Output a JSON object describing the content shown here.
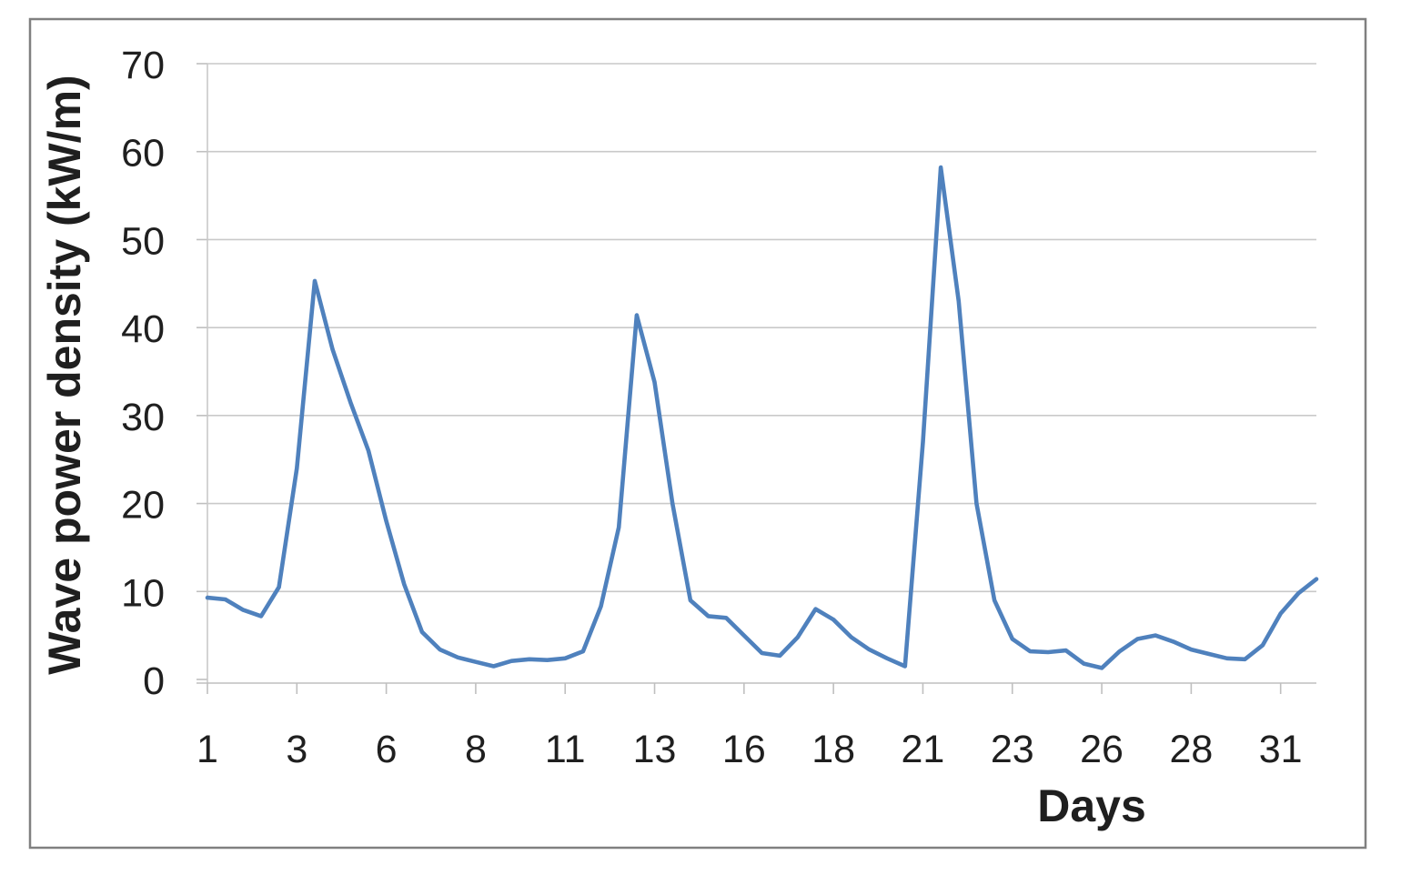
{
  "chart_data": {
    "type": "line",
    "title": "",
    "xlabel": "Days",
    "ylabel": "Wave power density (kW/m)",
    "x_axis": {
      "tick_labels": [
        "1",
        "3",
        "6",
        "8",
        "11",
        "13",
        "16",
        "18",
        "21",
        "23",
        "26",
        "28",
        "31"
      ],
      "tick_point_indices": [
        0,
        5,
        10,
        15,
        20,
        25,
        30,
        35,
        40,
        45,
        50,
        55,
        60
      ]
    },
    "y_axis": {
      "ticks": [
        0,
        10,
        20,
        30,
        40,
        50,
        60,
        70
      ],
      "ylim": [
        0,
        70
      ]
    },
    "grid": "horizontal",
    "legend": "none",
    "x_days": [
      1,
      1.5,
      2,
      2.5,
      3,
      3.5,
      4,
      4.5,
      5,
      5.5,
      6,
      6.5,
      7,
      7.5,
      8,
      8.5,
      9,
      9.5,
      10,
      10.5,
      11,
      11.5,
      12,
      12.5,
      13,
      13.5,
      14,
      14.5,
      15,
      15.5,
      16,
      16.5,
      17,
      17.5,
      18,
      18.5,
      19,
      19.5,
      20,
      20.5,
      21,
      21.5,
      22,
      22.5,
      23,
      23.5,
      24,
      24.5,
      25,
      25.5,
      26,
      26.5,
      27,
      27.5,
      28,
      28.5,
      29,
      29.5,
      30,
      30.5,
      31,
      31.5,
      32
    ],
    "series": [
      {
        "name": "Wave power density",
        "values": [
          9.3,
          9.1,
          7.9,
          7.2,
          10.5,
          24.0,
          45.3,
          37.5,
          31.5,
          26.0,
          18.0,
          10.8,
          5.4,
          3.4,
          2.5,
          2.0,
          1.5,
          2.1,
          2.3,
          2.2,
          2.4,
          3.2,
          8.3,
          17.3,
          41.4,
          33.8,
          20.0,
          9.0,
          7.2,
          7.0,
          5.0,
          3.0,
          2.7,
          4.8,
          8.0,
          6.8,
          4.8,
          3.4,
          2.4,
          1.5,
          27.0,
          58.2,
          43.0,
          20.0,
          9.0,
          4.6,
          3.2,
          3.1,
          3.3,
          1.8,
          1.3,
          3.2,
          4.6,
          5.0,
          4.3,
          3.4,
          2.9,
          2.4,
          2.3,
          3.9,
          7.5,
          9.8,
          11.4
        ]
      }
    ],
    "colors": {
      "line": "#4F81BD",
      "gridline": "#C9C9C9",
      "axis_line": "#BFBFBF",
      "chart_border": "#808080",
      "text": "#1F1F1F",
      "background": "#FFFFFF"
    }
  }
}
